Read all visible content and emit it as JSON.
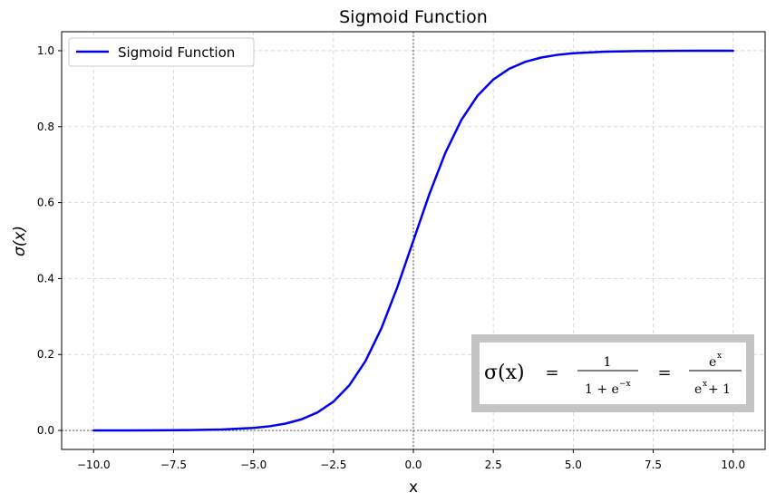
{
  "chart_data": {
    "type": "line",
    "title": "Sigmoid Function",
    "xlabel": "x",
    "ylabel": "σ(x)",
    "xlim": [
      -11.0,
      11.0
    ],
    "ylim": [
      -0.05,
      1.05
    ],
    "xticks": [
      -10.0,
      -7.5,
      -5.0,
      -2.5,
      0.0,
      2.5,
      5.0,
      7.5,
      10.0
    ],
    "xtick_labels": [
      "−10.0",
      "−7.5",
      "−5.0",
      "−2.5",
      "0.0",
      "2.5",
      "5.0",
      "7.5",
      "10.0"
    ],
    "yticks": [
      0.0,
      0.2,
      0.4,
      0.6,
      0.8,
      1.0
    ],
    "ytick_labels": [
      "0.0",
      "0.2",
      "0.4",
      "0.6",
      "0.8",
      "1.0"
    ],
    "grid": true,
    "legend_position": "top-left",
    "series": [
      {
        "name": "Sigmoid Function",
        "color": "#0000ee",
        "x": [
          -10,
          -9,
          -8,
          -7,
          -6,
          -5,
          -4.5,
          -4,
          -3.5,
          -3,
          -2.5,
          -2,
          -1.5,
          -1,
          -0.5,
          0,
          0.5,
          1,
          1.5,
          2,
          2.5,
          3,
          3.5,
          4,
          4.5,
          5,
          6,
          7,
          8,
          9,
          10
        ],
        "y": [
          4.54e-05,
          0.0001234,
          0.0003354,
          0.000911,
          0.002473,
          0.006693,
          0.01099,
          0.01799,
          0.02931,
          0.04743,
          0.07586,
          0.1192,
          0.1824,
          0.2689,
          0.3775,
          0.5,
          0.6225,
          0.7311,
          0.8176,
          0.8808,
          0.9241,
          0.9526,
          0.9707,
          0.982,
          0.989,
          0.9933,
          0.9975,
          0.9991,
          0.9997,
          0.9999,
          0.99995
        ]
      }
    ],
    "reference_lines": {
      "x0_dotted": true,
      "y0_dotted": true
    }
  },
  "formula": {
    "lhs": "σ(x)",
    "eq": "=",
    "frac1_num": "1",
    "frac1_den_base": "1 + e",
    "frac1_den_exp": "−x",
    "frac2_num_base": "e",
    "frac2_num_exp": "x",
    "frac2_den_base": "e",
    "frac2_den_exp": "x",
    "frac2_den_tail": "+ 1"
  },
  "colors": {
    "line": "#0000ee",
    "grid": "#d0d0d0",
    "formula_border": "#c4c4c4"
  }
}
